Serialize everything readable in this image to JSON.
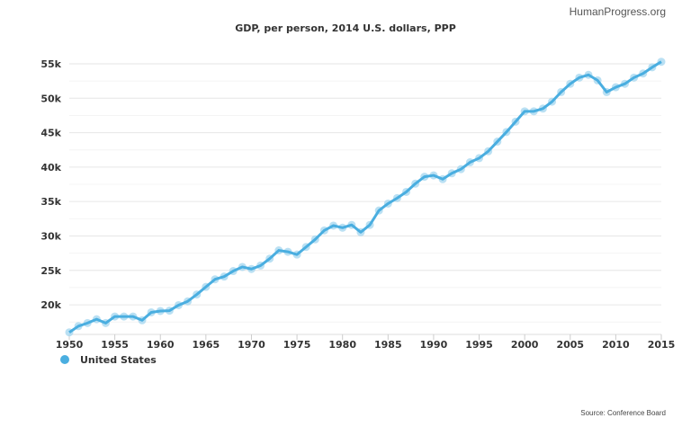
{
  "brand": "HumanProgress.org",
  "source": "Source: Conference Board",
  "chart_data": {
    "type": "line",
    "title": "GDP, per person, 2014 U.S. dollars, PPP",
    "xlabel": "",
    "ylabel": "",
    "xlim": [
      1950,
      2015
    ],
    "ylim": [
      15700,
      55000
    ],
    "x_ticks": [
      1950,
      1955,
      1960,
      1965,
      1970,
      1975,
      1980,
      1985,
      1990,
      1995,
      2000,
      2005,
      2010,
      2015
    ],
    "x_tick_labels": [
      "1950",
      "1955",
      "1960",
      "1965",
      "1970",
      "1975",
      "1980",
      "1985",
      "1990",
      "1995",
      "2000",
      "2005",
      "2010",
      "2015"
    ],
    "y_ticks": [
      20000,
      25000,
      30000,
      35000,
      40000,
      45000,
      50000,
      55000
    ],
    "y_tick_labels": [
      "20k",
      "25k",
      "30k",
      "35k",
      "40k",
      "45k",
      "50k",
      "55k"
    ],
    "grid": true,
    "legend_position": "bottom-left",
    "colors": {
      "line": "#4aaee0",
      "marker": "#a9d8f0",
      "grid": "#e6e6e6"
    },
    "series": [
      {
        "name": "United States",
        "x": [
          1950,
          1951,
          1952,
          1953,
          1954,
          1955,
          1956,
          1957,
          1958,
          1959,
          1960,
          1961,
          1962,
          1963,
          1964,
          1965,
          1966,
          1967,
          1968,
          1969,
          1970,
          1971,
          1972,
          1973,
          1974,
          1975,
          1976,
          1977,
          1978,
          1979,
          1980,
          1981,
          1982,
          1983,
          1984,
          1985,
          1986,
          1987,
          1988,
          1989,
          1990,
          1991,
          1992,
          1993,
          1994,
          1995,
          1996,
          1997,
          1998,
          1999,
          2000,
          2001,
          2002,
          2003,
          2004,
          2005,
          2006,
          2007,
          2008,
          2009,
          2010,
          2011,
          2012,
          2013,
          2014,
          2015
        ],
        "values": [
          16000,
          16900,
          17350,
          17900,
          17350,
          18300,
          18300,
          18300,
          17750,
          18900,
          19100,
          19150,
          19950,
          20500,
          21500,
          22600,
          23700,
          24100,
          24900,
          25500,
          25200,
          25700,
          26700,
          27900,
          27700,
          27300,
          28400,
          29500,
          30800,
          31500,
          31200,
          31600,
          30550,
          31600,
          33700,
          34700,
          35500,
          36400,
          37600,
          38600,
          38800,
          38250,
          39100,
          39700,
          40700,
          41300,
          42300,
          43700,
          45100,
          46600,
          48100,
          48100,
          48500,
          49500,
          50900,
          52100,
          53000,
          53400,
          52600,
          50900,
          51600,
          52100,
          53000,
          53600,
          54500,
          55300
        ]
      }
    ]
  }
}
